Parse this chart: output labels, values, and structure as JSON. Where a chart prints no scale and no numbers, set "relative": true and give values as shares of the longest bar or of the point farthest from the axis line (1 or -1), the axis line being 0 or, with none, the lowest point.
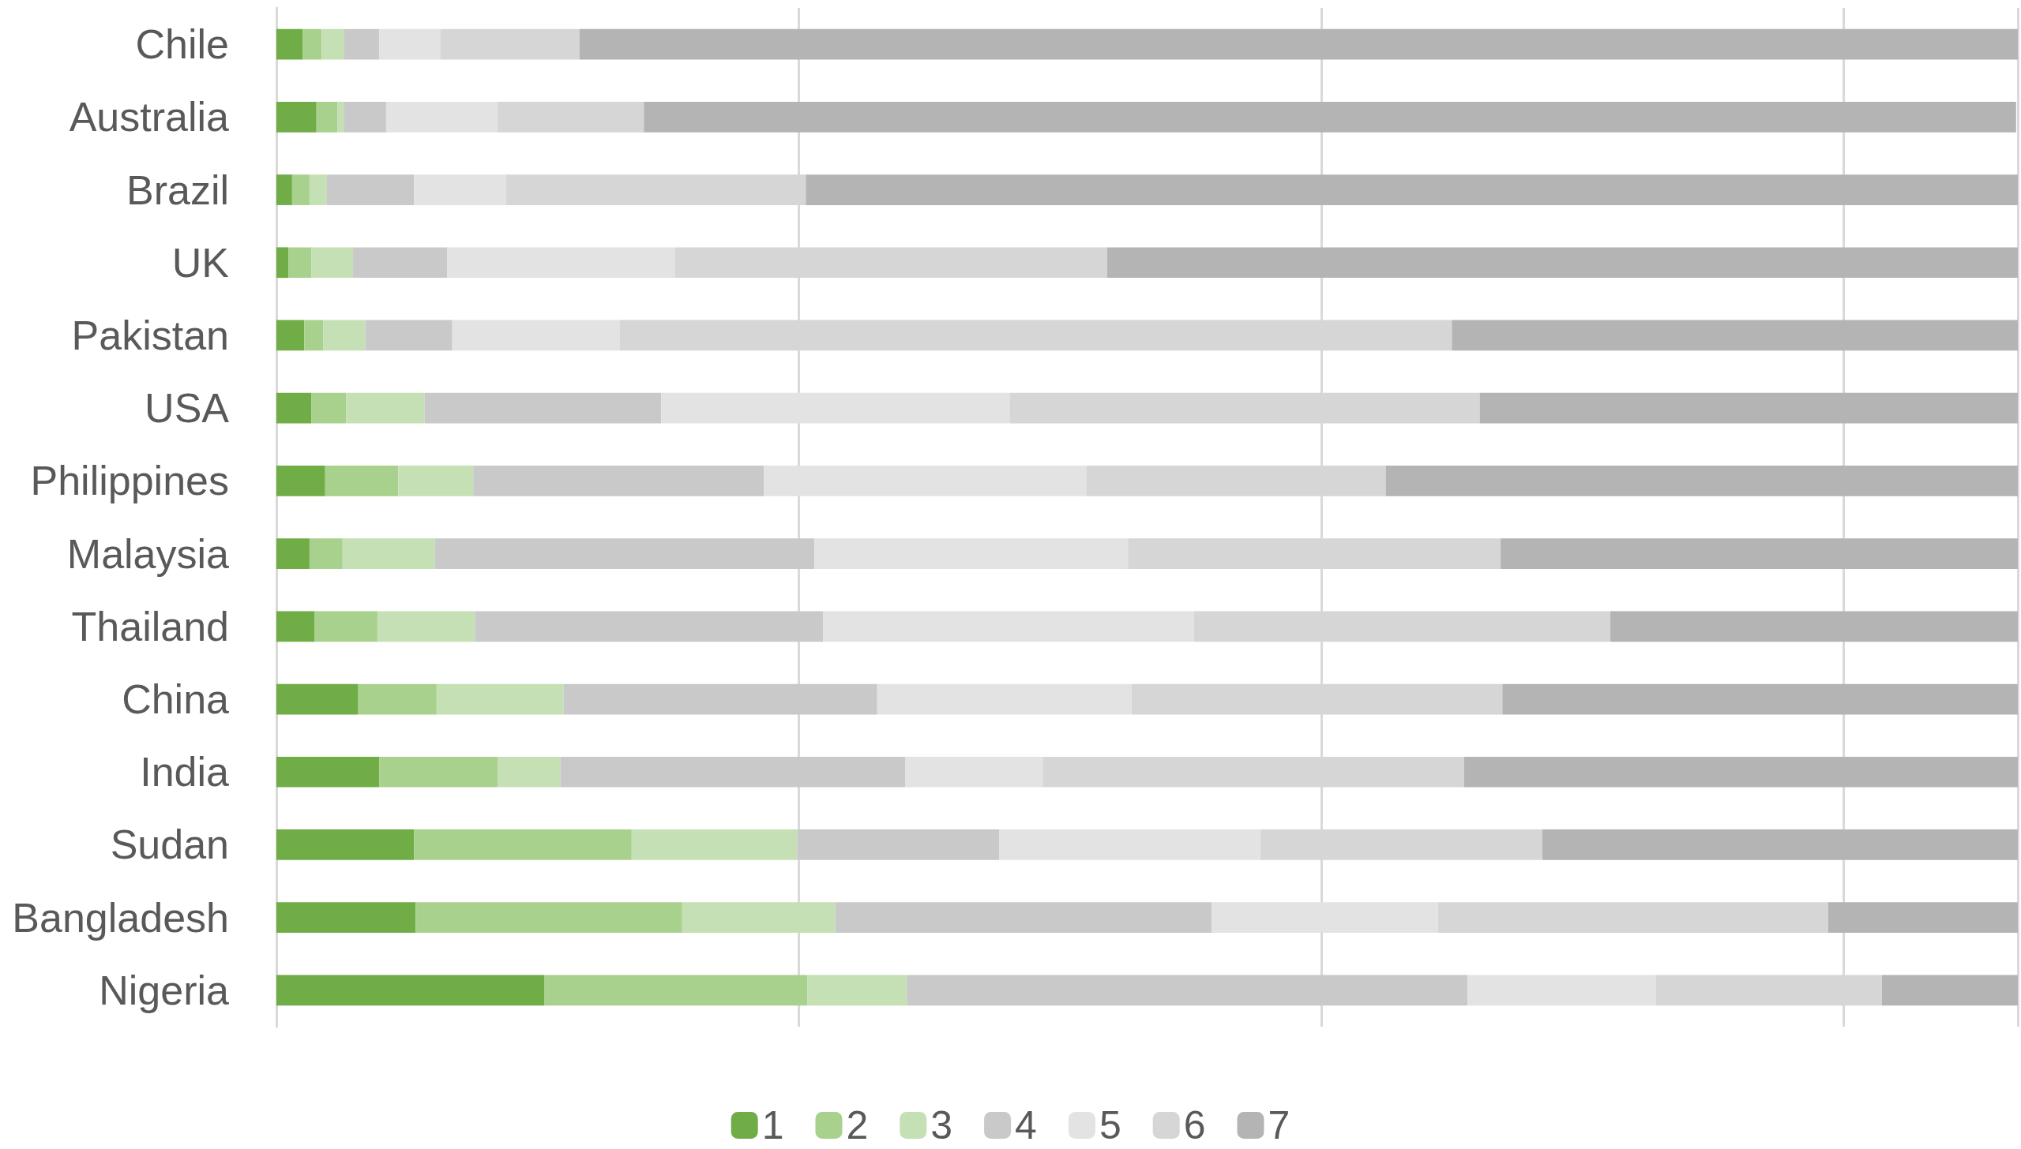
{
  "chart_data": {
    "type": "bar",
    "orientation": "horizontal",
    "stacked": true,
    "relative": true,
    "grid": true,
    "legend": "bottom",
    "categories": [
      "Chile",
      "Australia",
      "Brazil",
      "UK",
      "Pakistan",
      "USA",
      "Philippines",
      "Malaysia",
      "Thailand",
      "China",
      "India",
      "Sudan",
      "Bangladesh",
      "Nigeria"
    ],
    "series": [
      {
        "name": "1",
        "color": "#70ad47",
        "values": [
          0.015,
          0.023,
          0.009,
          0.007,
          0.016,
          0.02,
          0.028,
          0.019,
          0.022,
          0.047,
          0.059,
          0.079,
          0.08,
          0.154
        ]
      },
      {
        "name": "2",
        "color": "#a9d18e",
        "values": [
          0.011,
          0.012,
          0.01,
          0.013,
          0.011,
          0.02,
          0.042,
          0.019,
          0.036,
          0.045,
          0.068,
          0.125,
          0.153,
          0.151
        ]
      },
      {
        "name": "3",
        "color": "#c5e0b4",
        "values": [
          0.013,
          0.004,
          0.01,
          0.024,
          0.024,
          0.045,
          0.043,
          0.053,
          0.056,
          0.073,
          0.036,
          0.095,
          0.088,
          0.057
        ]
      },
      {
        "name": "4",
        "color": "#c9c9c9",
        "values": [
          0.02,
          0.024,
          0.05,
          0.054,
          0.05,
          0.136,
          0.167,
          0.218,
          0.2,
          0.18,
          0.198,
          0.116,
          0.216,
          0.322
        ]
      },
      {
        "name": "5",
        "color": "#e3e3e3",
        "values": [
          0.035,
          0.064,
          0.053,
          0.131,
          0.096,
          0.2,
          0.185,
          0.18,
          0.213,
          0.146,
          0.079,
          0.15,
          0.13,
          0.108
        ]
      },
      {
        "name": "6",
        "color": "#d6d6d6",
        "values": [
          0.08,
          0.084,
          0.172,
          0.248,
          0.478,
          0.27,
          0.172,
          0.214,
          0.239,
          0.213,
          0.242,
          0.162,
          0.224,
          0.13
        ]
      },
      {
        "name": "7",
        "color": "#b4b4b4",
        "values": [
          0.826,
          0.788,
          0.696,
          0.523,
          0.325,
          0.309,
          0.363,
          0.297,
          0.234,
          0.296,
          0.318,
          0.273,
          0.109,
          0.078
        ]
      }
    ]
  }
}
